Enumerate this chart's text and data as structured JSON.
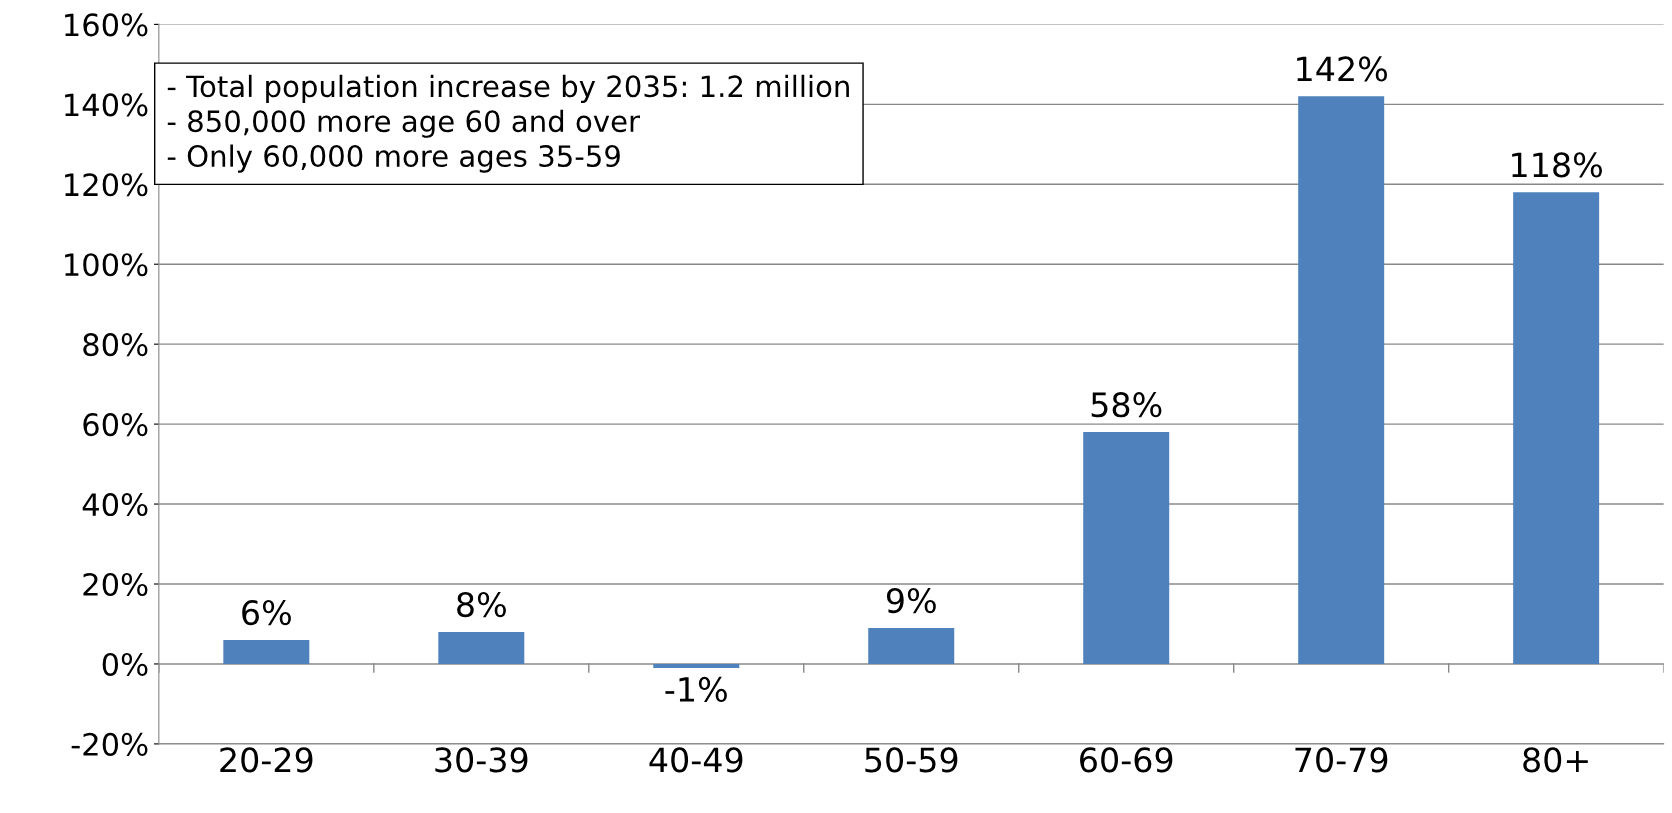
{
  "chart_data": {
    "type": "bar",
    "categories": [
      "20-29",
      "30-39",
      "40-49",
      "50-59",
      "60-69",
      "70-79",
      "80+"
    ],
    "values": [
      6,
      8,
      -1,
      9,
      58,
      142,
      118
    ],
    "value_labels": [
      "6%",
      "8%",
      "-1%",
      "9%",
      "58%",
      "142%",
      "118%"
    ],
    "color": "#4f81bd",
    "ylim": [
      -20,
      160
    ],
    "yticks": [
      {
        "value": -20,
        "label": "-20%"
      },
      {
        "value": 0,
        "label": "0%"
      },
      {
        "value": 20,
        "label": "20%"
      },
      {
        "value": 40,
        "label": "40%"
      },
      {
        "value": 60,
        "label": "60%"
      },
      {
        "value": 80,
        "label": "80%"
      },
      {
        "value": 100,
        "label": "100%"
      },
      {
        "value": 120,
        "label": "120%"
      },
      {
        "value": 140,
        "label": "140%"
      },
      {
        "value": 160,
        "label": "160%"
      }
    ],
    "grid": "y",
    "legend": false,
    "annotations": [
      "- Total population increase by 2035: 1.2 million\n- 850,000 more age 60 and over\n- Only 60,000 more ages 35-59"
    ]
  }
}
